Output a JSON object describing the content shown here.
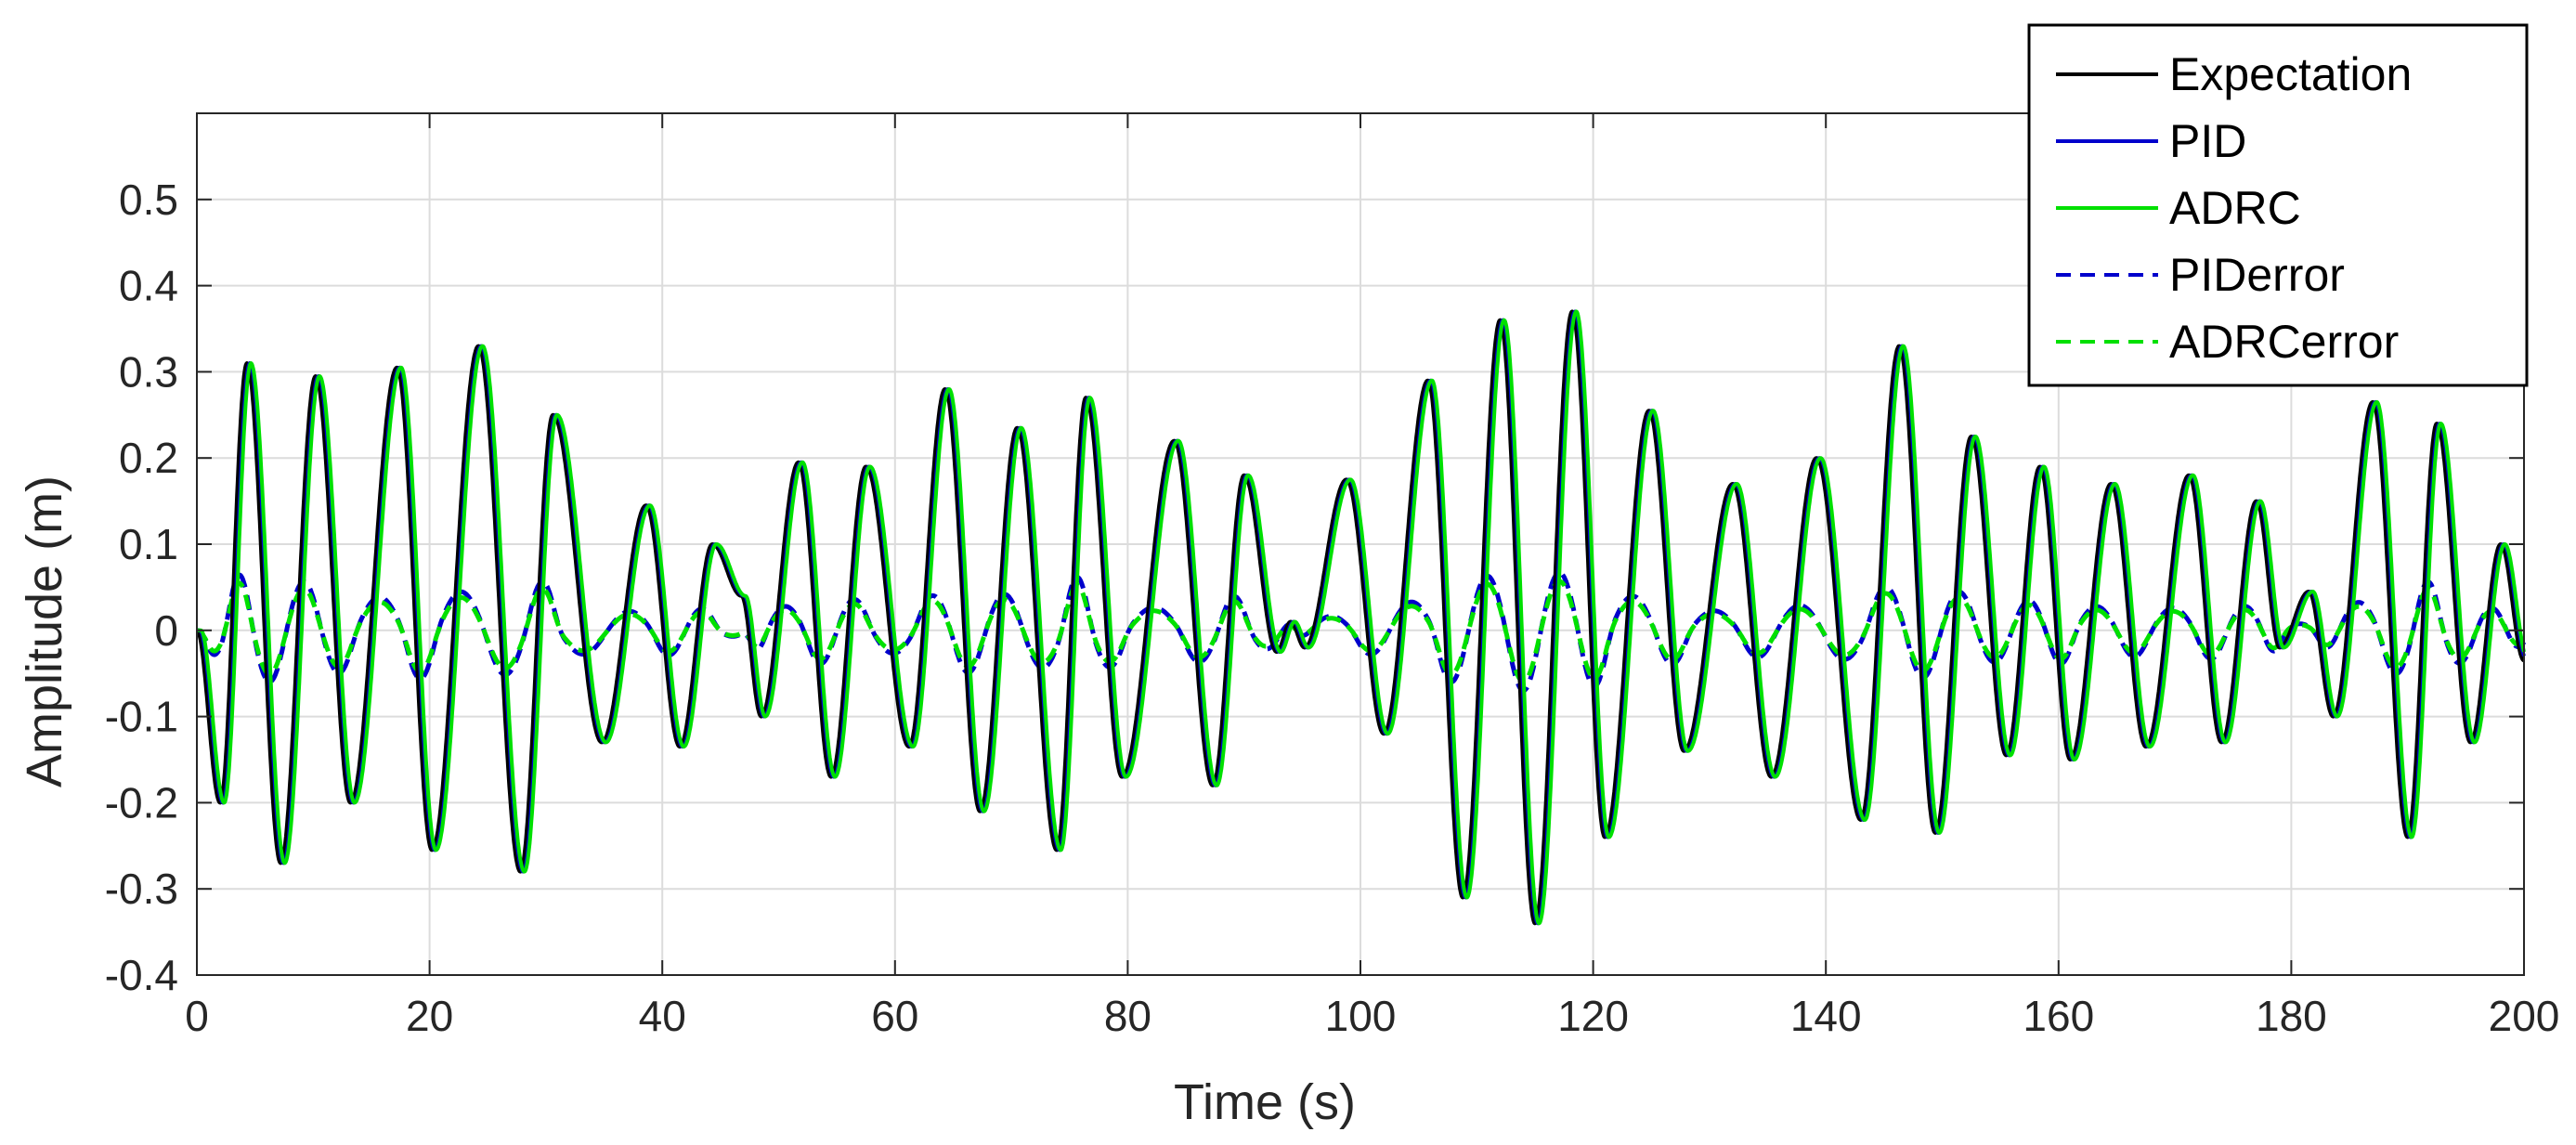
{
  "chart_data": {
    "type": "line",
    "xlabel": "Time (s)",
    "ylabel": "Amplitude (m)",
    "xlim": [
      0,
      200
    ],
    "ylim": [
      -0.4,
      0.6
    ],
    "xticks": [
      0,
      20,
      40,
      60,
      80,
      100,
      120,
      140,
      160,
      180,
      200
    ],
    "yticks": [
      -0.4,
      -0.3,
      -0.2,
      -0.1,
      0,
      0.1,
      0.2,
      0.3,
      0.4,
      0.5
    ],
    "ytick_labels": [
      "-0.4",
      "-0.3",
      "-0.2",
      "-0.1",
      "0",
      "0.1",
      "0.2",
      "0.3",
      "0.4",
      "0.5"
    ],
    "grid": true,
    "legend_position": "top-right",
    "extrema": {
      "t": [
        0,
        2.0,
        4.3,
        7.2,
        10.2,
        13.2,
        17.2,
        20.2,
        24.2,
        27.8,
        30.6,
        34.8,
        38.6,
        41.5,
        44.3,
        46.8,
        48.5,
        51.7,
        54.5,
        57.5,
        61.2,
        64.3,
        67.3,
        70.5,
        73.9,
        76.4,
        79.5,
        84.0,
        87.3,
        90.0,
        92.8,
        94.0,
        95.2,
        98.8,
        102.0,
        105.8,
        108.8,
        112.0,
        115.0,
        118.2,
        121.0,
        124.8,
        127.8,
        132.0,
        135.3,
        139.2,
        143.0,
        146.3,
        149.4,
        152.5,
        155.5,
        158.4,
        161.0,
        164.5,
        167.5,
        171.2,
        174.0,
        177.0,
        179.0,
        181.5,
        183.6,
        187.0,
        190.0,
        192.5,
        195.4,
        198.0,
        200
      ],
      "y": [
        0.0,
        -0.2,
        0.31,
        -0.27,
        0.295,
        -0.2,
        0.305,
        -0.255,
        0.33,
        -0.28,
        0.25,
        -0.13,
        0.145,
        -0.135,
        0.1,
        0.04,
        -0.1,
        0.195,
        -0.17,
        0.19,
        -0.135,
        0.28,
        -0.21,
        0.235,
        -0.255,
        0.27,
        -0.17,
        0.22,
        -0.18,
        0.18,
        -0.025,
        0.01,
        -0.02,
        0.175,
        -0.12,
        0.29,
        -0.31,
        0.36,
        -0.34,
        0.37,
        -0.24,
        0.255,
        -0.14,
        0.17,
        -0.17,
        0.2,
        -0.22,
        0.33,
        -0.235,
        0.225,
        -0.145,
        0.19,
        -0.15,
        0.17,
        -0.135,
        0.18,
        -0.13,
        0.15,
        -0.02,
        0.045,
        -0.1,
        0.265,
        -0.24,
        0.24,
        -0.13,
        0.1,
        -0.035
      ]
    },
    "series": [
      {
        "name": "Expectation",
        "color": "#000000",
        "style": "solid",
        "phase_lag": 0.0,
        "error_gain": 0.0
      },
      {
        "name": "PID",
        "color": "#0000cc",
        "style": "solid",
        "phase_lag": 0.25,
        "error_gain": 0.0
      },
      {
        "name": "ADRC",
        "color": "#00e000",
        "style": "solid",
        "phase_lag": 0.35,
        "error_gain": 0.0
      },
      {
        "name": "PIDerror",
        "color": "#0000cc",
        "style": "dashed",
        "phase_lag": 0.0,
        "error_gain": 0.2
      },
      {
        "name": "ADRCerror",
        "color": "#00e000",
        "style": "dashed",
        "phase_lag": 0.0,
        "error_gain": 0.17
      }
    ]
  }
}
